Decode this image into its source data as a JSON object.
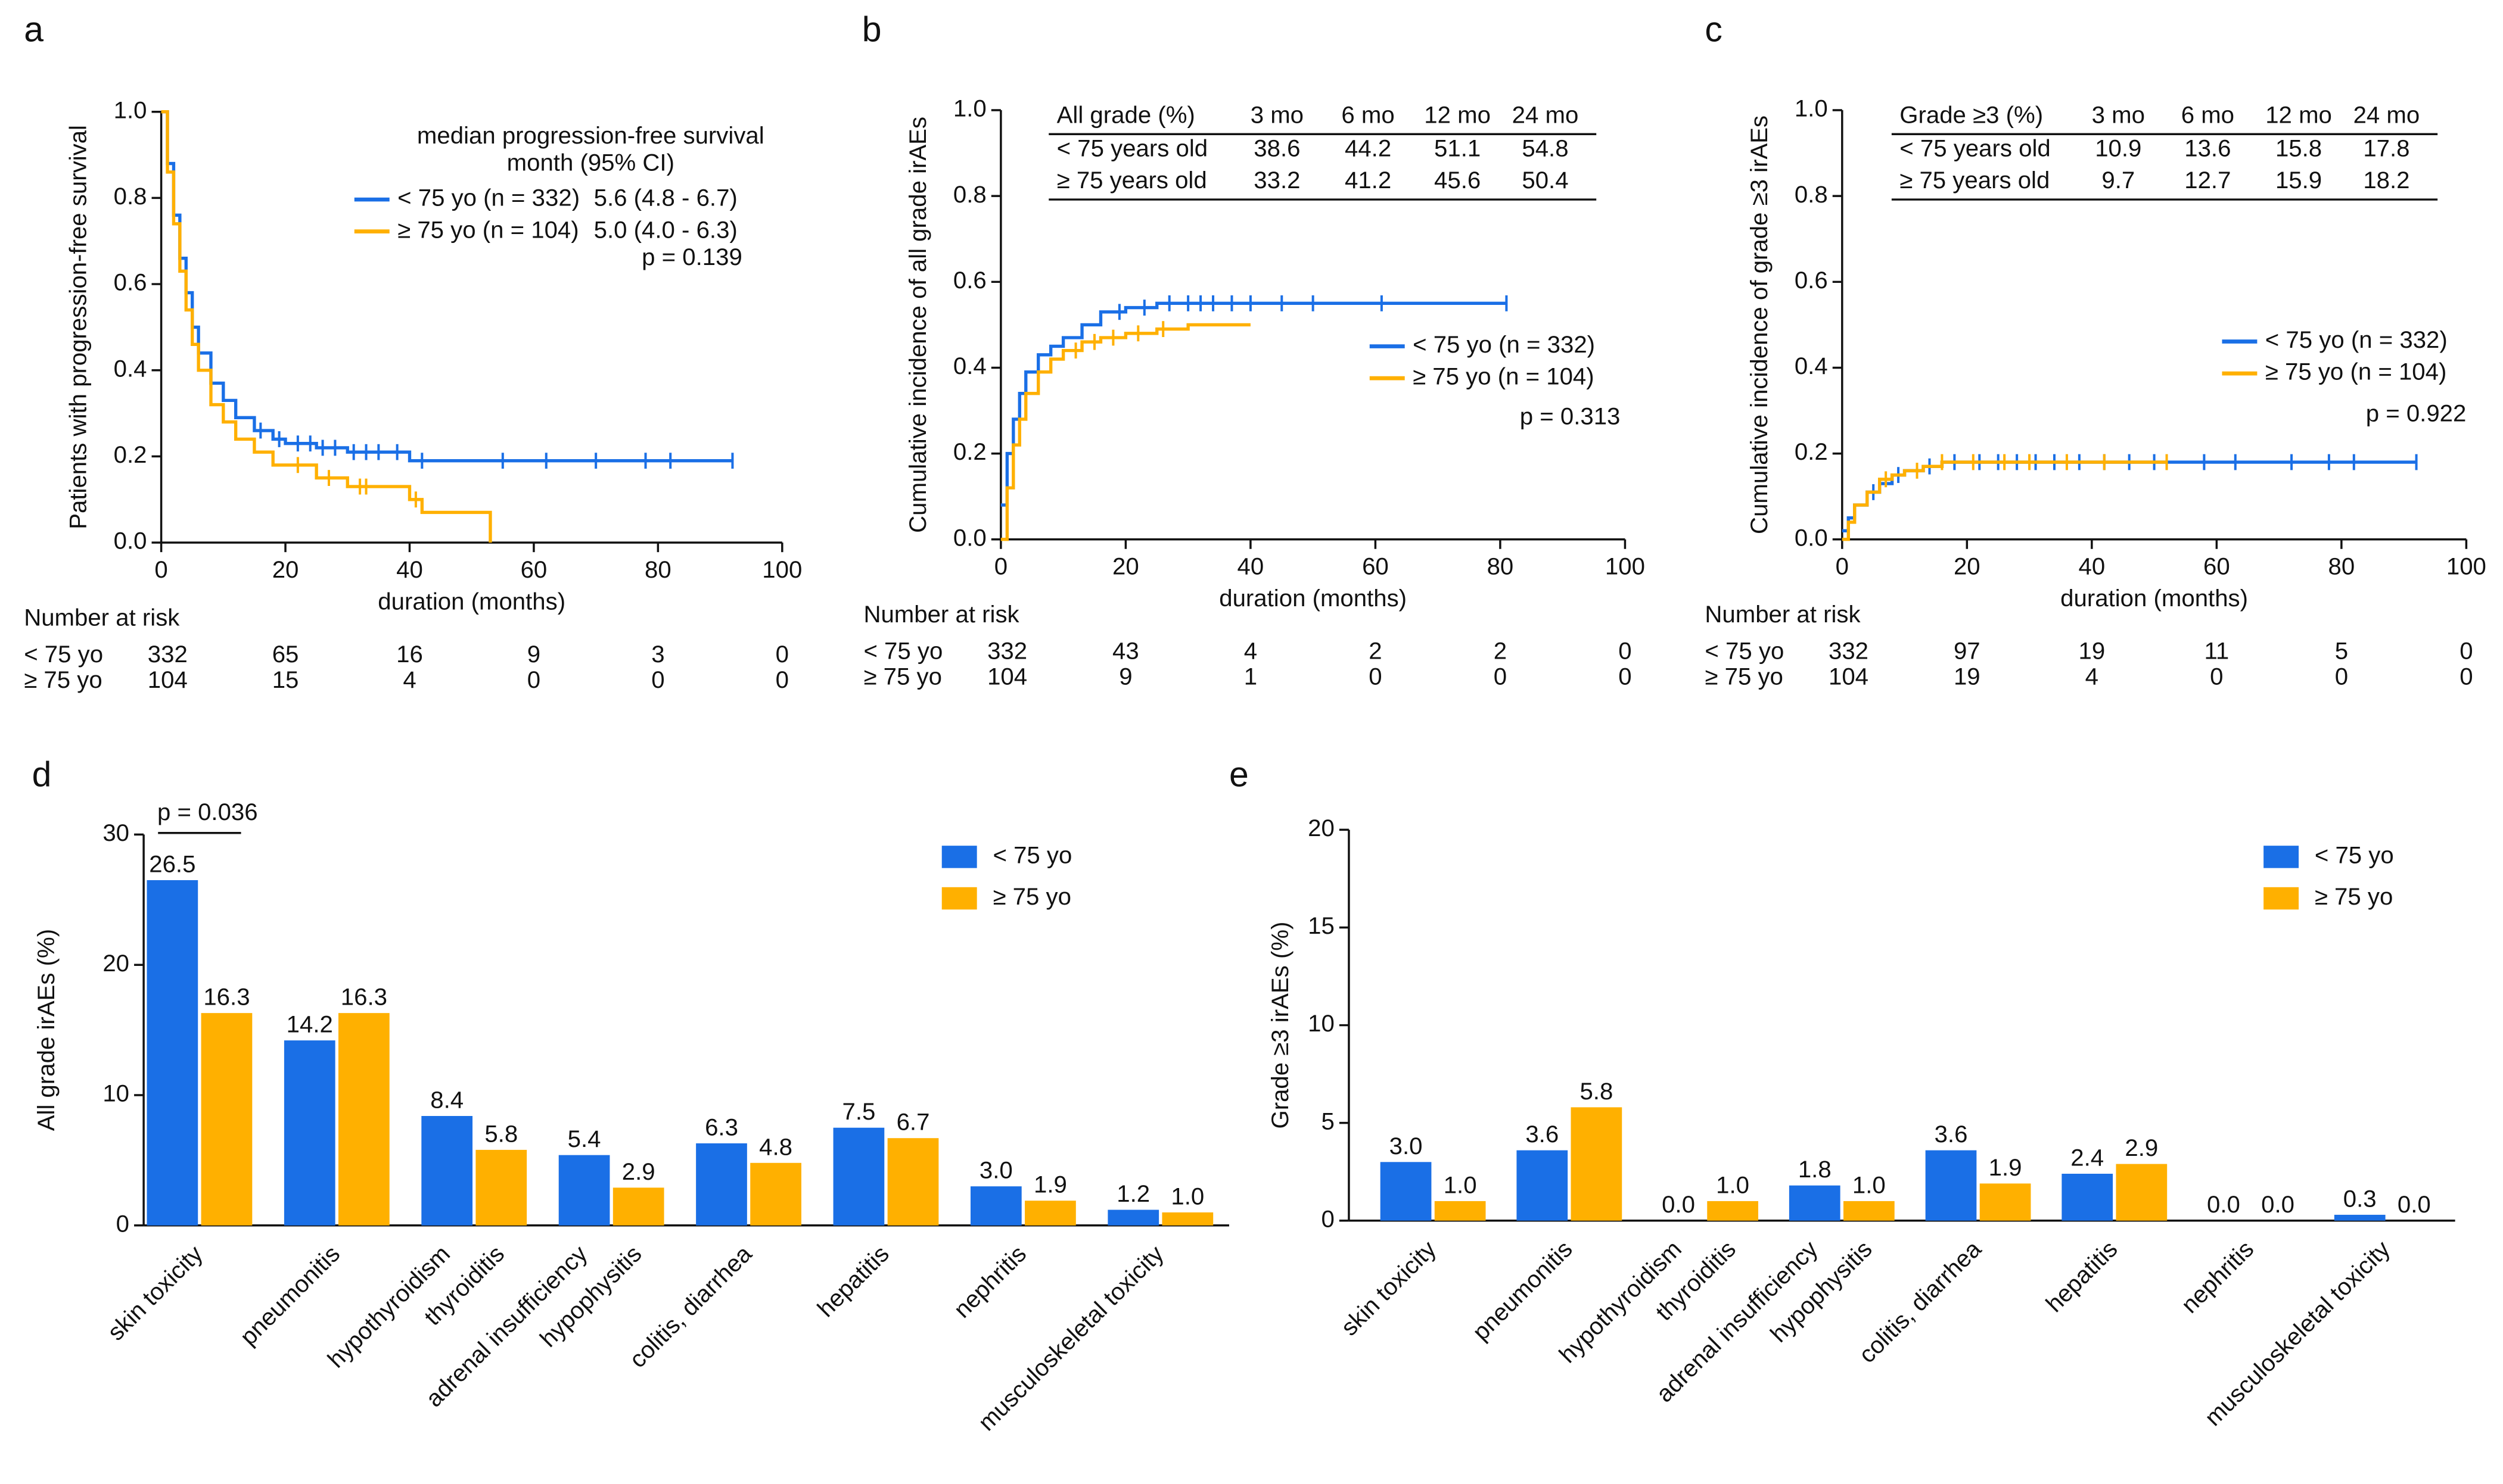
{
  "chart_data": [
    {
      "type": "step",
      "panel": "a",
      "xlabel": "duration (months)",
      "ylabel": "Patients with progression-free survival",
      "xlim": [
        0,
        100
      ],
      "xticks": [
        0,
        20,
        40,
        60,
        80,
        100
      ],
      "ylim": [
        0,
        1
      ],
      "yticks": [
        {
          "value": 0,
          "label": "0.0"
        },
        0.2,
        0.4,
        0.6,
        0.8,
        {
          "value": 1,
          "label": "1.0"
        }
      ],
      "annotations": [
        "median progression-free survival",
        "month (95% CI)"
      ],
      "p_label": "p = 0.139",
      "series": [
        {
          "name": "< 75 yo (n = 332)",
          "median": "5.6 (4.8 - 6.7)",
          "color": "#1a6fe6",
          "x": [
            0,
            1,
            2,
            3,
            4,
            5,
            6,
            8,
            10,
            12,
            15,
            18,
            20,
            25,
            30,
            40,
            92
          ],
          "values": [
            1.0,
            0.88,
            0.76,
            0.66,
            0.58,
            0.5,
            0.44,
            0.37,
            0.33,
            0.29,
            0.26,
            0.24,
            0.23,
            0.22,
            0.21,
            0.19,
            0.19
          ],
          "censored_x": [
            16,
            19,
            22,
            24,
            26,
            28,
            31,
            33,
            35,
            38,
            42,
            55,
            62,
            70,
            78,
            82,
            92
          ]
        },
        {
          "name": "≥ 75 yo (n = 104)",
          "median": "5.0 (4.0 - 6.3)",
          "color": "#ffb000",
          "x": [
            0,
            1,
            2,
            3,
            4,
            5,
            6,
            8,
            10,
            12,
            15,
            18,
            20,
            25,
            30,
            40,
            42,
            53
          ],
          "values": [
            1.0,
            0.86,
            0.74,
            0.63,
            0.54,
            0.46,
            0.4,
            0.32,
            0.28,
            0.24,
            0.21,
            0.18,
            0.18,
            0.15,
            0.13,
            0.1,
            0.07,
            0.0
          ],
          "censored_x": [
            22,
            27,
            32,
            33,
            41
          ]
        }
      ],
      "risk_table": {
        "title": "Number at risk",
        "rows": [
          {
            "name": "< 75 yo",
            "values": [
              332,
              65,
              16,
              9,
              3,
              0
            ]
          },
          {
            "name": "≥ 75 yo",
            "values": [
              104,
              15,
              4,
              0,
              0,
              0
            ]
          }
        ]
      }
    },
    {
      "type": "step",
      "panel": "b",
      "xlabel": "duration (months)",
      "ylabel": "Cumulative incidence of all grade irAEs",
      "xlim": [
        0,
        100
      ],
      "xticks": [
        0,
        20,
        40,
        60,
        80,
        100
      ],
      "ylim": [
        0,
        1
      ],
      "yticks": [
        {
          "value": 0,
          "label": "0.0"
        },
        0.2,
        0.4,
        0.6,
        0.8,
        {
          "value": 1,
          "label": "1.0"
        }
      ],
      "p_label": "p = 0.313",
      "table": {
        "header": [
          "All grade (%)",
          "3 mo",
          "6 mo",
          "12 mo",
          "24 mo"
        ],
        "rows": [
          [
            "< 75 years old",
            38.6,
            44.2,
            51.1,
            54.8
          ],
          [
            "≥ 75 years old",
            33.2,
            41.2,
            45.6,
            50.4
          ]
        ]
      },
      "series": [
        {
          "name": "< 75 yo (n = 332)",
          "color": "#1a6fe6",
          "x": [
            0,
            1,
            2,
            3,
            4,
            6,
            8,
            10,
            13,
            16,
            20,
            25,
            81
          ],
          "values": [
            0.08,
            0.2,
            0.28,
            0.34,
            0.39,
            0.43,
            0.45,
            0.47,
            0.5,
            0.53,
            0.54,
            0.55,
            0.55
          ],
          "censored_x": [
            19,
            23,
            27,
            30,
            32,
            34,
            37,
            40,
            45,
            50,
            61,
            81
          ]
        },
        {
          "name": "≥ 75 yo (n = 104)",
          "color": "#ffb000",
          "x": [
            0,
            1,
            2,
            3,
            4,
            6,
            8,
            10,
            13,
            16,
            20,
            25,
            30,
            40
          ],
          "values": [
            0.0,
            0.12,
            0.22,
            0.28,
            0.34,
            0.39,
            0.42,
            0.44,
            0.46,
            0.47,
            0.48,
            0.49,
            0.5,
            0.5
          ],
          "censored_x": [
            12,
            15,
            18,
            22,
            26
          ]
        }
      ],
      "risk_table": {
        "title": "Number at risk",
        "rows": [
          {
            "name": "< 75 yo",
            "values": [
              332,
              43,
              4,
              2,
              2,
              0
            ]
          },
          {
            "name": "≥ 75 yo",
            "values": [
              104,
              9,
              1,
              0,
              0,
              0
            ]
          }
        ]
      }
    },
    {
      "type": "step",
      "panel": "c",
      "xlabel": "duration (months)",
      "ylabel": "Cumulative incidence of grade ≥3 irAEs",
      "xlim": [
        0,
        100
      ],
      "xticks": [
        0,
        20,
        40,
        60,
        80,
        100
      ],
      "ylim": [
        0,
        1
      ],
      "yticks": [
        {
          "value": 0,
          "label": "0.0"
        },
        0.2,
        0.4,
        0.6,
        0.8,
        {
          "value": 1,
          "label": "1.0"
        }
      ],
      "p_label": "p = 0.922",
      "table": {
        "header": [
          "Grade ≥3 (%)",
          "3 mo",
          "6 mo",
          "12 mo",
          "24 mo"
        ],
        "rows": [
          [
            "< 75 years old",
            10.9,
            13.6,
            15.8,
            17.8
          ],
          [
            "≥ 75 years old",
            9.7,
            12.7,
            15.9,
            18.2
          ]
        ]
      },
      "series": [
        {
          "name": "< 75 yo (n = 332)",
          "color": "#1a6fe6",
          "x": [
            0,
            1,
            2,
            4,
            6,
            8,
            10,
            13,
            16,
            20,
            92
          ],
          "values": [
            0.02,
            0.05,
            0.08,
            0.11,
            0.13,
            0.15,
            0.16,
            0.17,
            0.18,
            0.18,
            0.18
          ],
          "censored_x": [
            5,
            9,
            14,
            18,
            22,
            25,
            28,
            31,
            34,
            38,
            42,
            46,
            50,
            58,
            63,
            72,
            78,
            82,
            92
          ]
        },
        {
          "name": "≥ 75 yo (n = 104)",
          "color": "#ffb000",
          "x": [
            0,
            1,
            2,
            4,
            6,
            8,
            10,
            13,
            16,
            20,
            52
          ],
          "values": [
            0.0,
            0.04,
            0.08,
            0.11,
            0.14,
            0.15,
            0.16,
            0.17,
            0.18,
            0.18,
            0.18
          ],
          "censored_x": [
            7,
            12,
            16,
            21,
            26,
            30,
            36,
            42,
            52
          ]
        }
      ],
      "risk_table": {
        "title": "Number at risk",
        "rows": [
          {
            "name": "< 75 yo",
            "values": [
              332,
              97,
              19,
              11,
              5,
              0
            ]
          },
          {
            "name": "≥ 75 yo",
            "values": [
              104,
              19,
              4,
              0,
              0,
              0
            ]
          }
        ]
      }
    },
    {
      "type": "bar",
      "panel": "d",
      "ylabel": "All grade irAEs (%)",
      "ylim": [
        0,
        30
      ],
      "yticks": [
        0,
        10,
        20,
        30
      ],
      "bracket_label": "p = 0.036",
      "categories": [
        "skin toxicity",
        "pneumonitis",
        [
          "hypothyroidism",
          "thyroiditis"
        ],
        [
          "adrenal insufficiency",
          "hypophysitis"
        ],
        "colitis, diarrhea",
        "hepatitis",
        "nephritis",
        "musculoskeletal toxicity"
      ],
      "series": [
        {
          "name": "< 75 yo",
          "color": "#1a6fe6",
          "values": [
            26.5,
            14.2,
            8.4,
            5.4,
            6.3,
            7.5,
            3.0,
            1.2
          ],
          "value_labels": [
            "26.5",
            "14.2",
            "8.4",
            "5.4",
            "6.3",
            "7.5",
            "3.0",
            "1.2"
          ]
        },
        {
          "name": "≥ 75 yo",
          "color": "#ffb000",
          "values": [
            16.3,
            16.3,
            5.8,
            2.9,
            4.8,
            6.7,
            1.9,
            1.0
          ],
          "value_labels": [
            "16.3",
            "16.3",
            "5.8",
            "2.9",
            "4.8",
            "6.7",
            "1.9",
            "1.0"
          ]
        }
      ]
    },
    {
      "type": "bar",
      "panel": "e",
      "ylabel": "Grade ≥3 irAEs (%)",
      "ylim": [
        0,
        20
      ],
      "yticks": [
        0,
        5,
        10,
        15,
        20
      ],
      "categories": [
        "skin toxicity",
        "pneumonitis",
        [
          "hypothyroidism",
          "thyroiditis"
        ],
        [
          "adrenal insufficiency",
          "hypophysitis"
        ],
        "colitis, diarrhea",
        "hepatitis",
        "nephritis",
        "musculoskeletal toxicity"
      ],
      "series": [
        {
          "name": "< 75 yo",
          "color": "#1a6fe6",
          "values": [
            3.0,
            3.6,
            0.0,
            1.8,
            3.6,
            2.4,
            0.0,
            0.3
          ],
          "value_labels": [
            "3.0",
            "3.6",
            "0.0",
            "1.8",
            "3.6",
            "2.4",
            "0.0",
            "0.3"
          ]
        },
        {
          "name": "≥ 75 yo",
          "color": "#ffb000",
          "values": [
            1.0,
            5.8,
            1.0,
            1.0,
            1.9,
            2.9,
            0.0,
            0.0
          ],
          "value_labels": [
            "1.0",
            "5.8",
            "1.0",
            "1.0",
            "1.9",
            "2.9",
            "0.0",
            "0.0"
          ]
        }
      ]
    }
  ]
}
